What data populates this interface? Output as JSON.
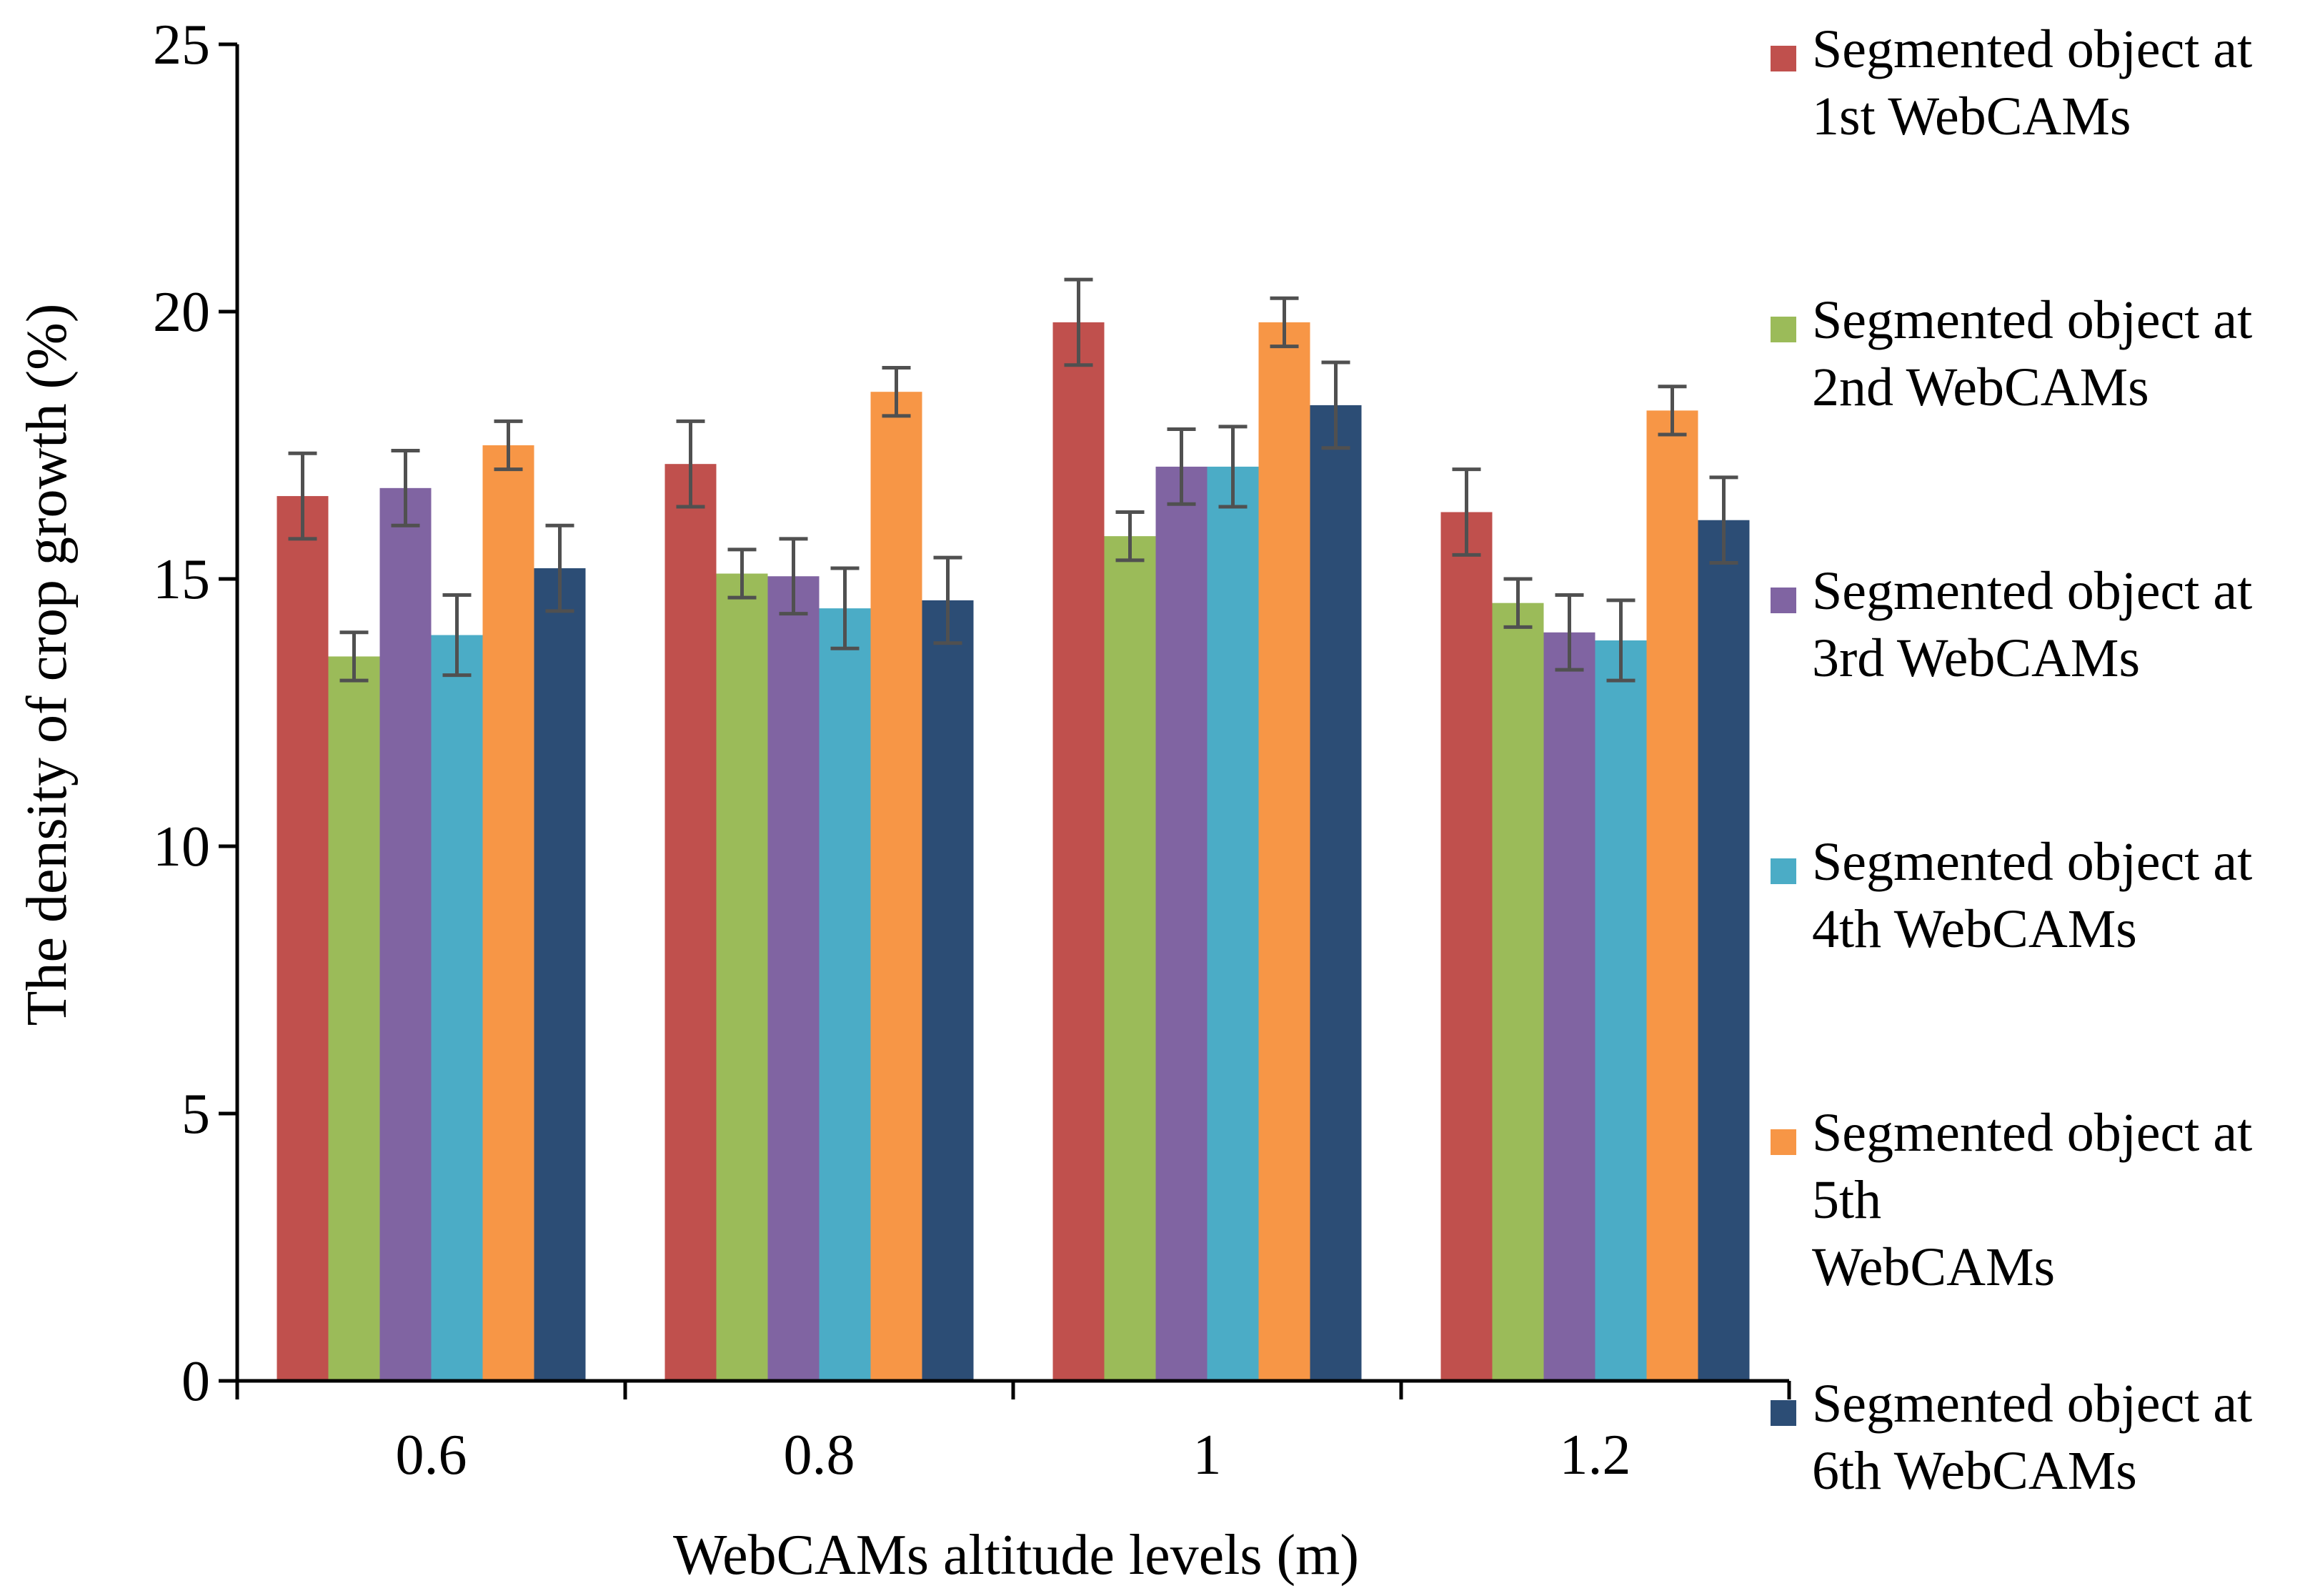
{
  "chart_data": {
    "type": "bar",
    "title": "",
    "xlabel": "WebCAMs altitude levels (m)",
    "ylabel": "The density of crop growth (%)",
    "ylim": [
      0,
      25
    ],
    "yticks": [
      "0",
      "5",
      "10",
      "15",
      "20",
      "25"
    ],
    "categories": [
      "0.6",
      "0.8",
      "1",
      "1.2"
    ],
    "grid": false,
    "legend_position": "right",
    "series": [
      {
        "name": "Segmented object at 1st WebCAMs",
        "legend_lines": [
          "Segmented object at",
          "1st WebCAMs"
        ],
        "color": "#C0504D",
        "values": [
          16.55,
          17.15,
          19.8,
          16.25
        ],
        "errors": [
          0.8,
          0.8,
          0.8,
          0.8
        ]
      },
      {
        "name": "Segmented object at 2nd WebCAMs",
        "legend_lines": [
          "Segmented object at",
          "2nd WebCAMs"
        ],
        "color": "#9BBB59",
        "values": [
          13.55,
          15.1,
          15.8,
          14.55
        ],
        "errors": [
          0.45,
          0.45,
          0.45,
          0.45
        ]
      },
      {
        "name": "Segmented object at 3rd WebCAMs",
        "legend_lines": [
          "Segmented object at",
          "3rd WebCAMs"
        ],
        "color": "#8064A2",
        "values": [
          16.7,
          15.05,
          17.1,
          14.0
        ],
        "errors": [
          0.7,
          0.7,
          0.7,
          0.7
        ]
      },
      {
        "name": "Segmented object at 4th WebCAMs",
        "legend_lines": [
          "Segmented object at",
          "4th WebCAMs"
        ],
        "color": "#4BACC6",
        "values": [
          13.95,
          14.45,
          17.1,
          13.85
        ],
        "errors": [
          0.75,
          0.75,
          0.75,
          0.75
        ]
      },
      {
        "name": "Segmented object at 5th WebCAMs",
        "legend_lines": [
          "Segmented object at",
          "5th",
          "WebCAMs"
        ],
        "color": "#F79646",
        "values": [
          17.5,
          18.5,
          19.8,
          18.15
        ],
        "errors": [
          0.45,
          0.45,
          0.45,
          0.45
        ]
      },
      {
        "name": "Segmented object at 6th WebCAMs",
        "legend_lines": [
          "Segmented object at",
          "6th WebCAMs"
        ],
        "color": "#2C4D75",
        "values": [
          15.2,
          14.6,
          18.25,
          16.1
        ],
        "errors": [
          0.8,
          0.8,
          0.8,
          0.8
        ]
      }
    ]
  }
}
